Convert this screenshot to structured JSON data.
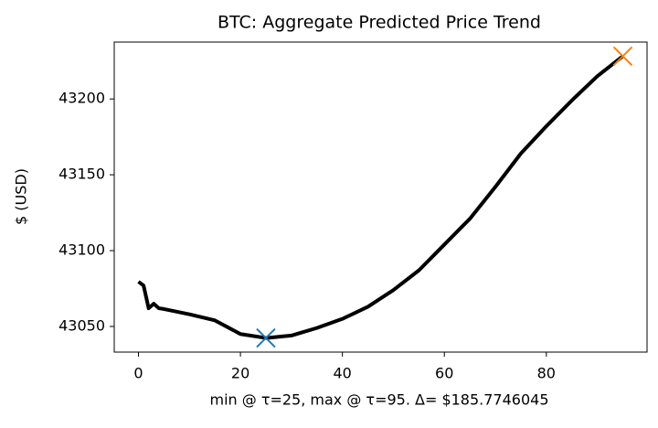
{
  "chart_data": {
    "type": "line",
    "title": "BTC: Aggregate Predicted Price Trend",
    "xlabel": "min @ τ=25, max @ τ=95. Δ= $185.7746045",
    "ylabel": "$ (USD)",
    "x": [
      0,
      1,
      2,
      3,
      4,
      5,
      10,
      15,
      20,
      25,
      30,
      35,
      40,
      45,
      50,
      55,
      60,
      65,
      70,
      75,
      80,
      85,
      90,
      95
    ],
    "series": [
      {
        "color": "#000000",
        "values": [
          43079.5,
          43077,
          43062,
          43065,
          43062,
          43061.5,
          43058,
          43054,
          43045,
          43042.4,
          43044,
          43049,
          43055,
          43063,
          43074,
          43087,
          43104,
          43121,
          43142,
          43164,
          43182,
          43199,
          43215,
          43228.17
        ]
      }
    ],
    "markers": [
      {
        "x": 25,
        "y": 43042.4,
        "color": "#1f77b4"
      },
      {
        "x": 95,
        "y": 43228.17,
        "color": "#ff7f0e"
      }
    ],
    "xlim": [
      -4.75,
      99.75
    ],
    "ylim": [
      43033.1,
      43237.5
    ],
    "xticks": [
      0,
      20,
      40,
      60,
      80
    ],
    "yticks": [
      43050,
      43100,
      43150,
      43200
    ]
  }
}
